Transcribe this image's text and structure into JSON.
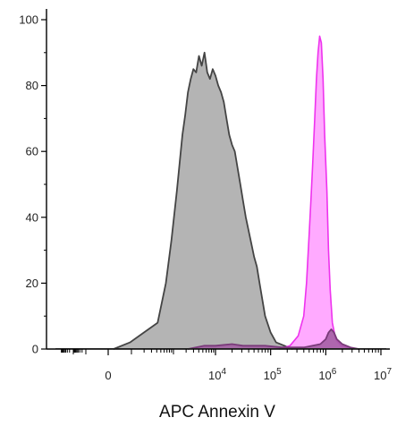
{
  "chart_data": {
    "type": "area",
    "title": "",
    "xlabel": "APC Annexin V",
    "ylabel": "",
    "x_scale": "biexponential (log10 above linear region around 0)",
    "ylim": [
      0,
      100
    ],
    "y_ticks": [
      0,
      20,
      40,
      60,
      80,
      100
    ],
    "x_ticks": [
      {
        "label": "0",
        "value": 0
      },
      {
        "label": "10",
        "exp": "4",
        "value": 10000
      },
      {
        "label": "10",
        "exp": "5",
        "value": 100000
      },
      {
        "label": "10",
        "exp": "6",
        "value": 1000000
      },
      {
        "label": "10",
        "exp": "7",
        "value": 10000000
      }
    ],
    "grid": false,
    "legend": "none",
    "series": [
      {
        "color": "#b4b4b4",
        "stroke": "#444444",
        "x_log10": [
          2.15,
          2.45,
          2.7,
          2.95,
          3.1,
          3.2,
          3.3,
          3.4,
          3.45,
          3.5,
          3.55,
          3.6,
          3.65,
          3.7,
          3.75,
          3.8,
          3.85,
          3.9,
          3.95,
          4.0,
          4.05,
          4.1,
          4.15,
          4.2,
          4.25,
          4.3,
          4.35,
          4.4,
          4.45,
          4.5,
          4.55,
          4.6,
          4.65,
          4.7,
          4.75,
          4.8,
          4.85,
          4.9,
          5.0,
          5.1,
          5.25,
          5.4
        ],
        "y": [
          0,
          2,
          5,
          8,
          20,
          33,
          48,
          65,
          71,
          78,
          82,
          85,
          84,
          89,
          86,
          90,
          84,
          82,
          85,
          83,
          80,
          78,
          75,
          70,
          65,
          62,
          60,
          55,
          50,
          45,
          40,
          36,
          32,
          28,
          25,
          20,
          15,
          10,
          5,
          2,
          1,
          0
        ]
      },
      {
        "color": "#ffaaff",
        "stroke": "#ee33ee",
        "x_log10": [
          5.15,
          5.35,
          5.5,
          5.6,
          5.65,
          5.7,
          5.73,
          5.76,
          5.8,
          5.83,
          5.86,
          5.89,
          5.92,
          5.95,
          5.98,
          6.02,
          6.05,
          6.08,
          6.12,
          6.18,
          6.28,
          6.5
        ],
        "y": [
          0,
          1,
          4,
          10,
          20,
          35,
          45,
          55,
          70,
          82,
          90,
          95,
          93,
          82,
          65,
          48,
          30,
          18,
          8,
          3,
          1,
          0
        ]
      },
      {
        "color": "#a05aa0",
        "stroke": "#7a3a7a",
        "x_log10": [
          3.5,
          3.8,
          4.0,
          4.3,
          4.5,
          4.9,
          5.2,
          5.6,
          5.9,
          6.0,
          6.05,
          6.1,
          6.15,
          6.2,
          6.3,
          6.45,
          6.6
        ],
        "y": [
          0,
          1,
          1,
          1.5,
          1,
          1,
          0.5,
          0.5,
          1.5,
          3,
          5,
          6,
          5,
          3,
          1.5,
          0.5,
          0
        ]
      }
    ]
  }
}
